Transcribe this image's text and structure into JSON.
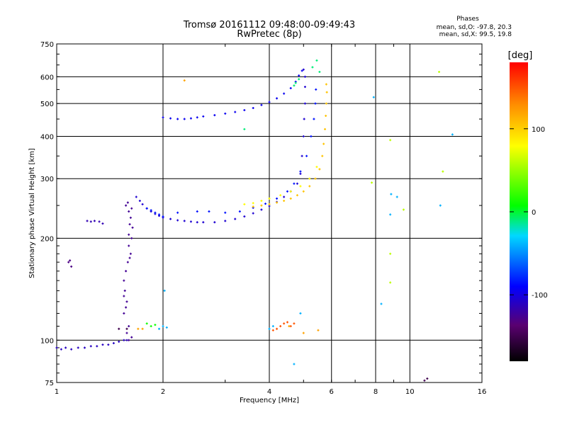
{
  "chart_data": {
    "type": "scatter",
    "title": "Tromsø 20161112 09:48:00-09:49:43",
    "subtitle": "RwPretec (8p)",
    "phase_info": {
      "header": "Phases",
      "line_o": "mean, sd,O: -97.8, 20.3",
      "line_x": "mean, sd,X:  99.5, 19.8"
    },
    "xlabel": "Frequency [MHz]",
    "ylabel": "Stationary phase Virtual Height [km]",
    "xscale": "log",
    "yscale": "log",
    "xlim": [
      1,
      16
    ],
    "ylim": [
      75,
      750
    ],
    "xticks": [
      1,
      2,
      4,
      6,
      8,
      10,
      16
    ],
    "xtick_labels": [
      "1",
      "2",
      "4",
      "6",
      "8",
      "10",
      "16"
    ],
    "yticks": [
      75,
      100,
      200,
      300,
      400,
      500,
      600,
      750
    ],
    "ytick_labels": [
      "75",
      "100",
      "200",
      "300",
      "400",
      "500",
      "600",
      "750"
    ],
    "grid": true,
    "colorbar": {
      "label": "[deg]",
      "range": [
        -180,
        180
      ],
      "ticks": [
        100,
        0,
        -100
      ],
      "tick_labels": [
        "100",
        "0",
        "-100"
      ],
      "colors": [
        "#000000",
        "#5a0070",
        "#0000ff",
        "#00d8ff",
        "#00ff00",
        "#ffff00",
        "#ff8c00",
        "#ff0000"
      ]
    },
    "series": [
      {
        "phase": -110,
        "points": [
          [
            1.0,
            95
          ],
          [
            1.03,
            94
          ],
          [
            1.06,
            95
          ],
          [
            1.1,
            94
          ],
          [
            1.15,
            95
          ],
          [
            1.2,
            95
          ],
          [
            1.25,
            96
          ],
          [
            1.3,
            96
          ],
          [
            1.35,
            97
          ],
          [
            1.4,
            97
          ],
          [
            1.45,
            98
          ],
          [
            1.5,
            99
          ],
          [
            1.55,
            100
          ],
          [
            1.58,
            100
          ]
        ]
      },
      {
        "phase": -130,
        "points": [
          [
            1.08,
            170
          ],
          [
            1.1,
            165
          ],
          [
            1.09,
            172
          ]
        ]
      },
      {
        "phase": -115,
        "points": [
          [
            1.22,
            225
          ],
          [
            1.25,
            224
          ],
          [
            1.28,
            225
          ],
          [
            1.32,
            224
          ],
          [
            1.35,
            221
          ]
        ]
      },
      {
        "phase": -125,
        "points": [
          [
            1.57,
            250
          ],
          [
            1.6,
            240
          ],
          [
            1.62,
            230
          ],
          [
            1.64,
            215
          ],
          [
            1.63,
            200
          ],
          [
            1.6,
            190
          ],
          [
            1.62,
            180
          ],
          [
            1.59,
            170
          ],
          [
            1.61,
            175
          ],
          [
            1.55,
            150
          ],
          [
            1.56,
            140
          ],
          [
            1.58,
            130
          ],
          [
            1.57,
            125
          ],
          [
            1.55,
            120
          ],
          [
            1.6,
            110
          ],
          [
            1.58,
            105
          ],
          [
            1.6,
            100
          ],
          [
            1.63,
            102
          ],
          [
            1.55,
            135
          ],
          [
            1.57,
            160
          ],
          [
            1.6,
            205
          ],
          [
            1.61,
            220
          ],
          [
            1.63,
            245
          ],
          [
            1.59,
            255
          ]
        ]
      },
      {
        "phase": -105,
        "points": [
          [
            1.68,
            265
          ],
          [
            1.72,
            258
          ],
          [
            1.75,
            252
          ],
          [
            1.8,
            245
          ],
          [
            1.85,
            240
          ],
          [
            1.9,
            236
          ],
          [
            1.95,
            233
          ],
          [
            2.0,
            230
          ],
          [
            2.1,
            228
          ],
          [
            2.2,
            226
          ],
          [
            2.3,
            225
          ],
          [
            2.4,
            224
          ],
          [
            2.5,
            223
          ],
          [
            2.6,
            223
          ],
          [
            2.8,
            223
          ],
          [
            3.0,
            225
          ],
          [
            3.2,
            228
          ],
          [
            3.4,
            232
          ],
          [
            3.6,
            237
          ],
          [
            3.8,
            243
          ],
          [
            4.0,
            249
          ],
          [
            4.2,
            256
          ],
          [
            4.4,
            265
          ],
          [
            4.6,
            275
          ],
          [
            4.8,
            290
          ],
          [
            4.9,
            310
          ],
          [
            4.95,
            350
          ],
          [
            5.0,
            400
          ],
          [
            5.02,
            450
          ],
          [
            5.05,
            500
          ],
          [
            5.05,
            560
          ],
          [
            5.05,
            600
          ],
          [
            5.0,
            630
          ]
        ]
      },
      {
        "phase": -95,
        "points": [
          [
            2.0,
            455
          ],
          [
            2.1,
            452
          ],
          [
            2.2,
            450
          ],
          [
            2.3,
            450
          ],
          [
            2.4,
            452
          ],
          [
            2.5,
            455
          ],
          [
            2.6,
            458
          ],
          [
            2.8,
            462
          ],
          [
            3.0,
            467
          ],
          [
            3.2,
            472
          ],
          [
            3.4,
            478
          ],
          [
            3.6,
            485
          ],
          [
            3.8,
            495
          ],
          [
            4.0,
            505
          ],
          [
            4.2,
            518
          ],
          [
            4.4,
            535
          ],
          [
            4.6,
            555
          ],
          [
            4.75,
            580
          ],
          [
            4.85,
            605
          ],
          [
            4.95,
            625
          ]
        ]
      },
      {
        "phase": -85,
        "points": [
          [
            1.8,
            245
          ],
          [
            1.85,
            242
          ],
          [
            1.9,
            238
          ],
          [
            1.95,
            235
          ],
          [
            2.0,
            232
          ],
          [
            2.2,
            238
          ],
          [
            2.5,
            240
          ],
          [
            2.7,
            240
          ],
          [
            3.0,
            238
          ],
          [
            3.3,
            240
          ],
          [
            3.6,
            246
          ],
          [
            3.9,
            253
          ],
          [
            4.2,
            262
          ],
          [
            4.5,
            275
          ],
          [
            4.7,
            290
          ],
          [
            4.9,
            315
          ],
          [
            5.1,
            350
          ],
          [
            5.25,
            400
          ],
          [
            5.35,
            450
          ],
          [
            5.4,
            500
          ],
          [
            5.42,
            550
          ]
        ]
      },
      {
        "phase": 105,
        "points": [
          [
            3.6,
            248
          ],
          [
            3.8,
            250
          ],
          [
            4.0,
            252
          ],
          [
            4.2,
            255
          ],
          [
            4.4,
            258
          ],
          [
            4.6,
            262
          ],
          [
            4.8,
            268
          ],
          [
            5.0,
            275
          ],
          [
            5.2,
            285
          ],
          [
            5.4,
            300
          ],
          [
            5.55,
            320
          ],
          [
            5.65,
            350
          ],
          [
            5.7,
            380
          ],
          [
            5.75,
            420
          ],
          [
            5.78,
            460
          ],
          [
            5.8,
            500
          ],
          [
            5.82,
            540
          ],
          [
            5.8,
            570
          ]
        ]
      },
      {
        "phase": 80,
        "points": [
          [
            3.4,
            252
          ],
          [
            3.6,
            254
          ],
          [
            3.8,
            258
          ],
          [
            4.0,
            262
          ],
          [
            4.3,
            268
          ],
          [
            4.6,
            275
          ],
          [
            4.9,
            285
          ],
          [
            5.2,
            300
          ],
          [
            5.45,
            325
          ]
        ]
      },
      {
        "phase": -10,
        "points": [
          [
            4.75,
            575
          ],
          [
            4.85,
            590
          ],
          [
            4.7,
            565
          ],
          [
            3.4,
            420
          ],
          [
            5.3,
            640
          ],
          [
            5.45,
            670
          ],
          [
            5.55,
            620
          ]
        ]
      },
      {
        "phase": 150,
        "points": [
          [
            4.3,
            110
          ],
          [
            4.4,
            112
          ],
          [
            4.5,
            113
          ],
          [
            4.6,
            110
          ],
          [
            4.7,
            112
          ],
          [
            4.2,
            108
          ],
          [
            4.1,
            107
          ]
        ]
      },
      {
        "phase": 120,
        "points": [
          [
            4.55,
            110
          ],
          [
            5.0,
            105
          ],
          [
            5.5,
            107
          ],
          [
            1.75,
            108
          ],
          [
            1.7,
            108
          ],
          [
            2.3,
            585
          ]
        ]
      },
      {
        "phase": 10,
        "points": [
          [
            1.8,
            112
          ],
          [
            1.85,
            110
          ],
          [
            1.9,
            111
          ]
        ]
      },
      {
        "phase": -40,
        "points": [
          [
            1.95,
            108
          ],
          [
            2.0,
            110
          ],
          [
            2.05,
            109
          ],
          [
            2.02,
            140
          ],
          [
            4.0,
            108
          ],
          [
            4.1,
            110
          ],
          [
            4.9,
            120
          ],
          [
            4.7,
            85
          ],
          [
            7.9,
            522
          ],
          [
            8.3,
            128
          ],
          [
            8.85,
            270
          ],
          [
            8.8,
            235
          ],
          [
            9.2,
            265
          ],
          [
            12.2,
            250
          ],
          [
            13.2,
            405
          ]
        ]
      },
      {
        "phase": 60,
        "points": [
          [
            9.6,
            243
          ],
          [
            8.8,
            180
          ],
          [
            8.8,
            148
          ],
          [
            8.8,
            390
          ],
          [
            12.4,
            315
          ],
          [
            12.1,
            620
          ],
          [
            7.8,
            292
          ]
        ]
      },
      {
        "phase": -150,
        "points": [
          [
            11.0,
            76
          ],
          [
            11.2,
            77
          ],
          [
            1.5,
            108
          ],
          [
            1.58,
            108
          ]
        ]
      }
    ]
  }
}
